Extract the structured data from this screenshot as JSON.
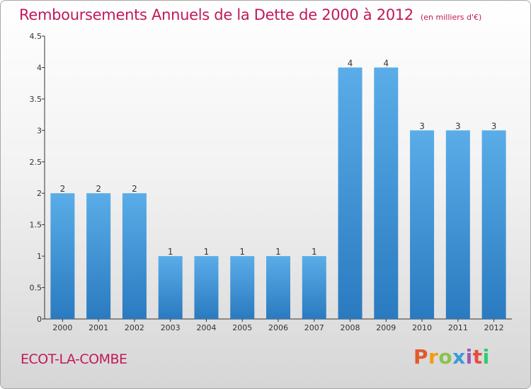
{
  "page": {
    "title": "Remboursements Annuels de la Dette de 2000 à 2012",
    "unit": "(en milliers d'€)",
    "commune": "ECOT-LA-COMBE",
    "logo_text": "Proxiti"
  },
  "colors": {
    "title": "#c2185b",
    "bar_top": "#5aade8",
    "bar_bottom": "#2a7ac0"
  },
  "chart_data": {
    "type": "bar",
    "title": "Remboursements Annuels de la Dette de 2000 à 2012",
    "subtitle": "(en milliers d'€)",
    "categories": [
      "2000",
      "2001",
      "2002",
      "2003",
      "2004",
      "2005",
      "2006",
      "2007",
      "2008",
      "2009",
      "2010",
      "2011",
      "2012"
    ],
    "values": [
      2,
      2,
      2,
      1,
      1,
      1,
      1,
      1,
      4,
      4,
      3,
      3,
      3
    ],
    "data_labels": [
      "2",
      "2",
      "2",
      "1",
      "1",
      "1",
      "1",
      "1",
      "4",
      "4",
      "3",
      "3",
      "3"
    ],
    "y_ticks": [
      "0",
      "0.5",
      "1",
      "1.5",
      "2",
      "2.5",
      "3",
      "3.5",
      "4",
      "4.5"
    ],
    "ylim": [
      0,
      4.5
    ],
    "xlabel": "",
    "ylabel": "",
    "grid": false,
    "legend": "none"
  }
}
